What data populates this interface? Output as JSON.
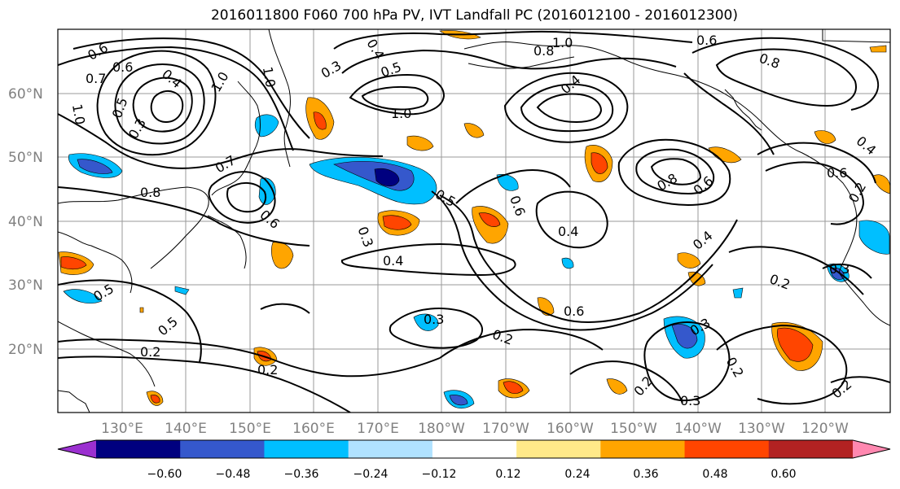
{
  "title": "2016011800 F060 700 hPa PV, IVT Landfall PC (2016012100 - 2016012300)",
  "lat_labels": [
    "60°N",
    "50°N",
    "40°N",
    "30°N",
    "20°N"
  ],
  "lon_labels": [
    "130°E",
    "140°E",
    "150°E",
    "160°E",
    "170°E",
    "180°W",
    "170°W",
    "160°W",
    "150°W",
    "140°W",
    "130°W",
    "120°W"
  ],
  "colorbar": {
    "ticks": [
      "−0.60",
      "−0.48",
      "−0.36",
      "−0.24",
      "−0.12",
      "0.12",
      "0.24",
      "0.36",
      "0.48",
      "0.60"
    ],
    "colors": [
      "#9b30d0",
      "#00007f",
      "#3558cc",
      "#00bfff",
      "#b0e2ff",
      "#ffffff",
      "#ffe989",
      "#ffa500",
      "#ff4500",
      "#b22222",
      "#ff88b0"
    ]
  },
  "contour_labels": [
    "0.6",
    "0.7",
    "1.0",
    "0.5",
    "0.3",
    "0.4",
    "1.0",
    "0.6",
    "1.0",
    "0.3",
    "0.5",
    "0.4",
    "1.0",
    "0.4",
    "0.8",
    "1.0",
    "0.6",
    "0.7",
    "0.8",
    "0.6",
    "0.5",
    "0.3",
    "0.4",
    "0.4",
    "0.8",
    "0.6",
    "0.6",
    "0.4",
    "0.3",
    "0.2",
    "0.5",
    "0.5",
    "0.2",
    "0.2",
    "0.3",
    "0.2",
    "0.6",
    "0.3",
    "0.2",
    "0.2",
    "0.3",
    "0.2",
    "0.6",
    "0.8",
    "0.2",
    "0.4"
  ]
}
